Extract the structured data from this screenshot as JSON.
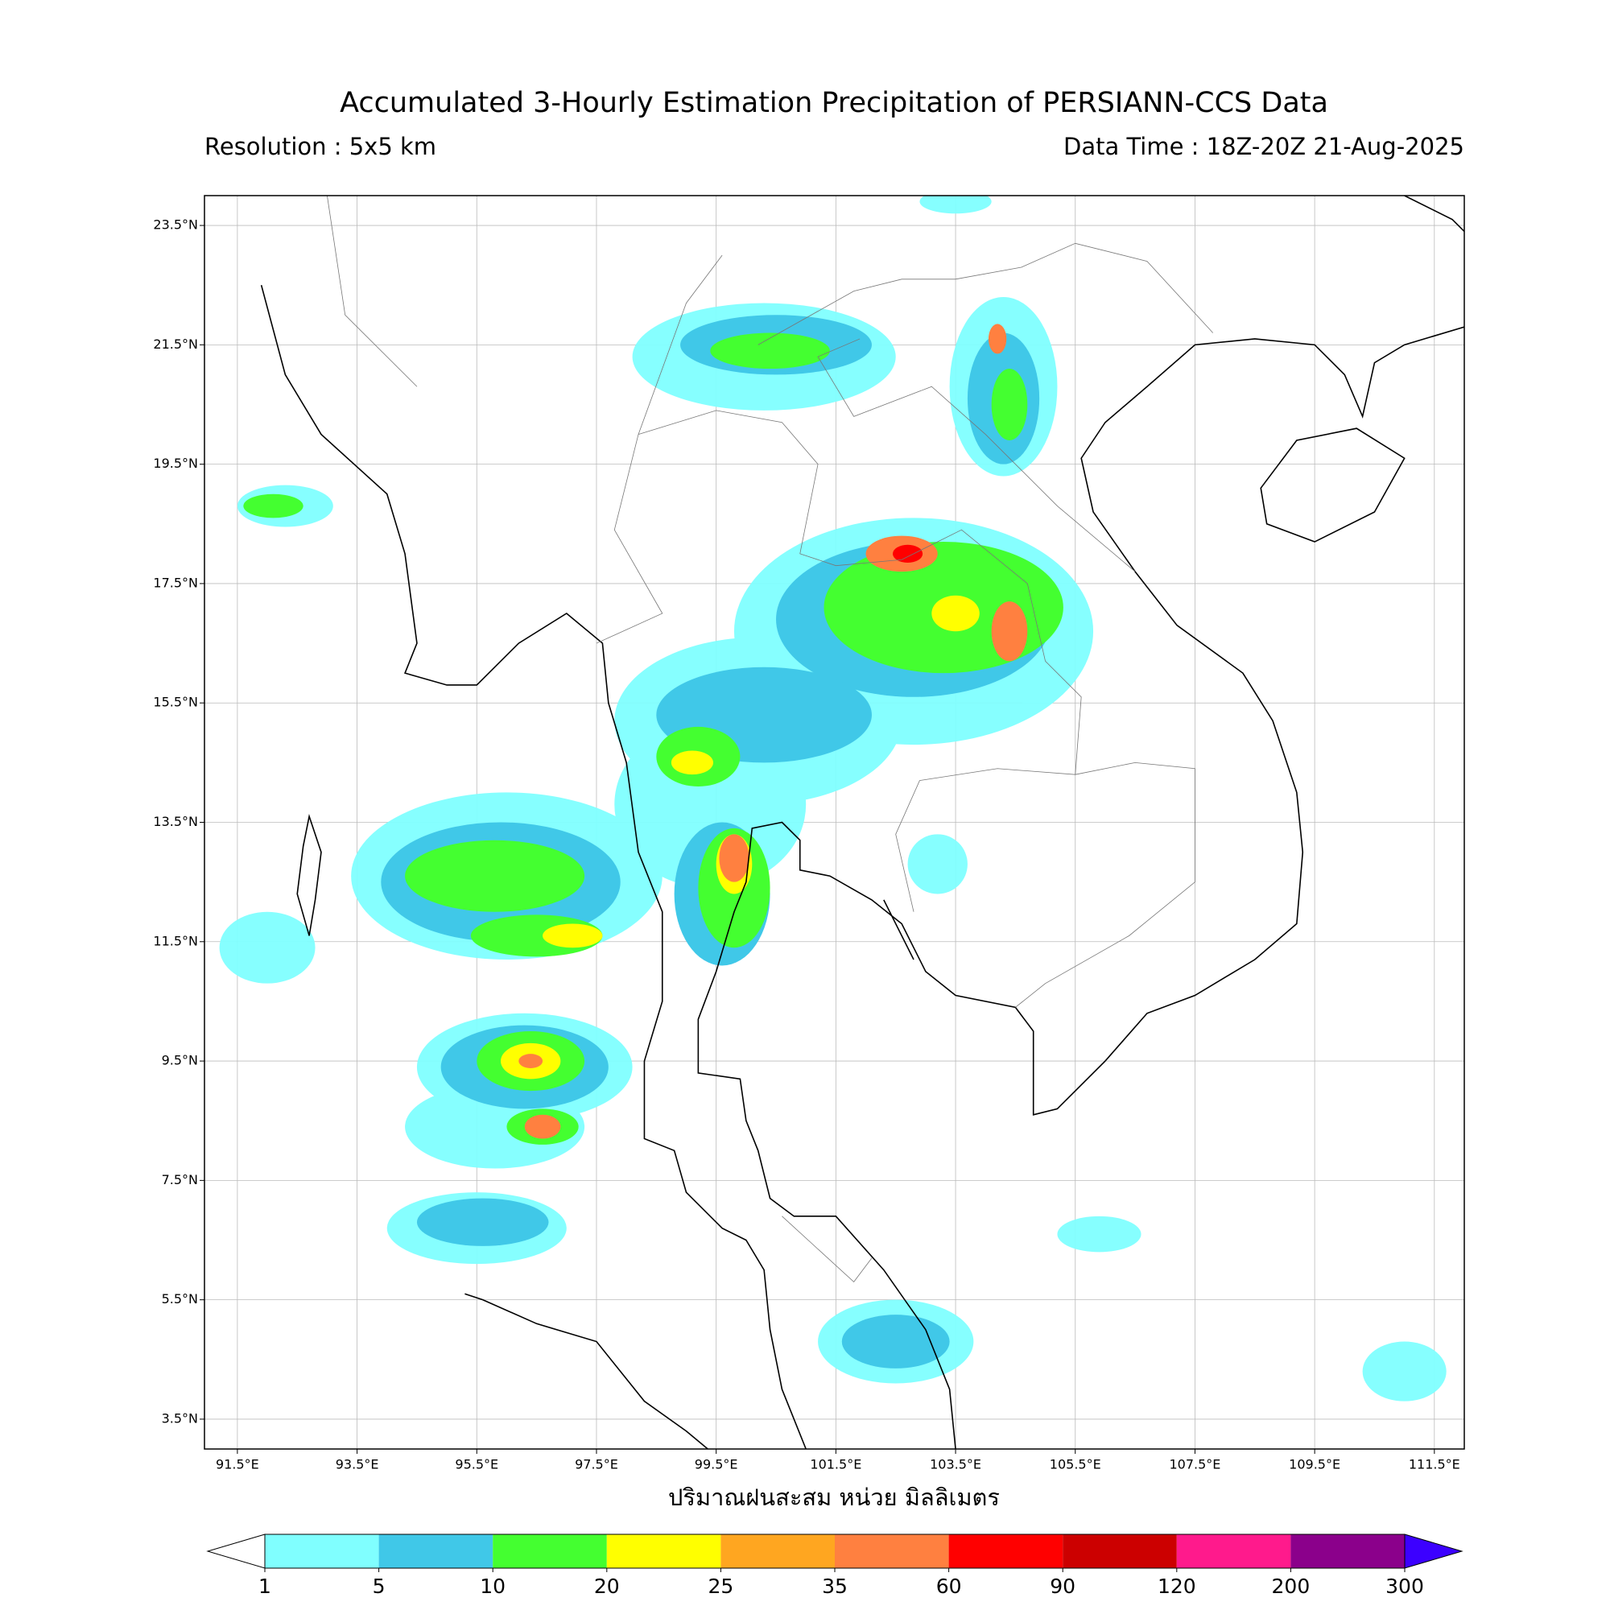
{
  "title": "Accumulated 3-Hourly Estimation Precipitation of PERSIANN-CCS Data",
  "subtitle_left": "Resolution : 5x5 km",
  "subtitle_right": "Data Time : 18Z-20Z 21-Aug-2025",
  "map": {
    "xlim": [
      90.95,
      112.0
    ],
    "ylim": [
      3.0,
      24.0
    ],
    "xticks": [
      {
        "value": 91.5,
        "label": "91.5°E"
      },
      {
        "value": 93.5,
        "label": "93.5°E"
      },
      {
        "value": 95.5,
        "label": "95.5°E"
      },
      {
        "value": 97.5,
        "label": "97.5°E"
      },
      {
        "value": 99.5,
        "label": "99.5°E"
      },
      {
        "value": 101.5,
        "label": "101.5°E"
      },
      {
        "value": 103.5,
        "label": "103.5°E"
      },
      {
        "value": 105.5,
        "label": "105.5°E"
      },
      {
        "value": 107.5,
        "label": "107.5°E"
      },
      {
        "value": 109.5,
        "label": "109.5°E"
      },
      {
        "value": 111.5,
        "label": "111.5°E"
      }
    ],
    "yticks": [
      {
        "value": 23.5,
        "label": "23.5°N"
      },
      {
        "value": 21.5,
        "label": "21.5°N"
      },
      {
        "value": 19.5,
        "label": "19.5°N"
      },
      {
        "value": 17.5,
        "label": "17.5°N"
      },
      {
        "value": 15.5,
        "label": "15.5°N"
      },
      {
        "value": 13.5,
        "label": "13.5°N"
      },
      {
        "value": 11.5,
        "label": "11.5°N"
      },
      {
        "value": 9.5,
        "label": "9.5°N"
      },
      {
        "value": 7.5,
        "label": "7.5°N"
      },
      {
        "value": 5.5,
        "label": "5.5°N"
      },
      {
        "value": 3.5,
        "label": "3.5°N"
      }
    ],
    "grid": true
  },
  "xlabel": "ปริมาณฝนสะสม หน่วย มิลลิเมตร",
  "colorbar": {
    "levels": [
      1,
      5,
      10,
      20,
      25,
      35,
      60,
      90,
      120,
      200,
      300
    ],
    "colors": [
      "#80ffff",
      "#40c8e8",
      "#44ff30",
      "#ffff00",
      "#ffa620",
      "#ff8040",
      "#ff0000",
      "#cc0000",
      "#ff1a8c",
      "#8b008b"
    ],
    "under_color": "#ffffff",
    "over_color": "#3c00ff"
  }
}
